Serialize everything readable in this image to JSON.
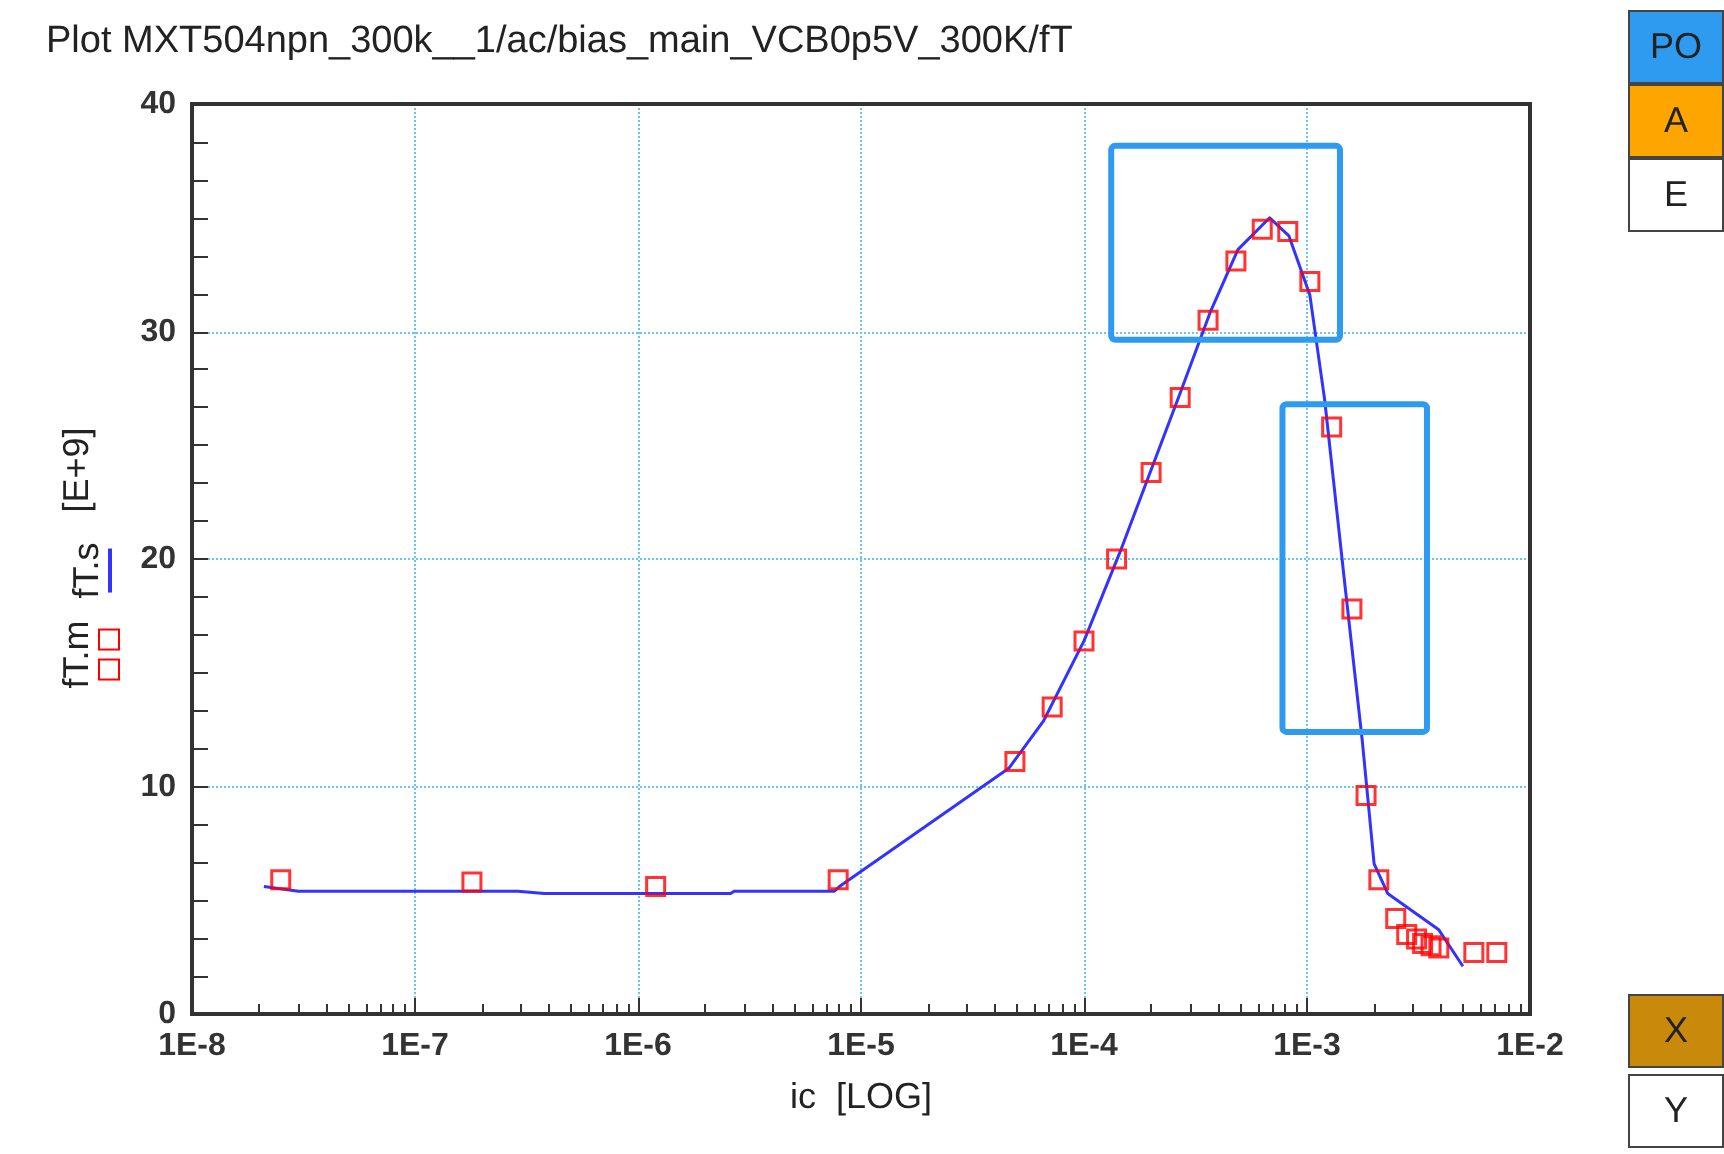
{
  "chart_data": {
    "type": "scatter",
    "title": "Plot MXT504npn_300k__1/ac/bias_main_VCB0p5V_300K/fT",
    "xlabel": "ic  [LOG]",
    "ylabel": "[E+9]",
    "log": "x",
    "grid": true,
    "legend": "left",
    "xlim": [
      1e-08,
      0.01
    ],
    "xticks": [
      {
        "value": 1e-08,
        "label": "1E-8"
      },
      {
        "value": 1e-07,
        "label": "1E-7"
      },
      {
        "value": 1e-06,
        "label": "1E-6"
      },
      {
        "value": 1e-05,
        "label": "1E-5"
      },
      {
        "value": 0.0001,
        "label": "1E-4"
      },
      {
        "value": 0.001,
        "label": "1E-3"
      },
      {
        "value": 0.01,
        "label": "1E-2"
      }
    ],
    "ylim": [
      0,
      40
    ],
    "yticks": [
      0,
      10,
      20,
      30,
      40
    ],
    "annotations": [
      "PO",
      "A",
      "E",
      "X",
      "Y"
    ],
    "series": [
      {
        "name": "fT.m",
        "marker": "square",
        "color": "#ff0000",
        "x": [
          2.5e-08,
          1.8e-07,
          1.2e-06,
          7.9e-06,
          4.9e-05,
          7.2e-05,
          0.0001,
          0.00014,
          0.0002,
          0.00027,
          0.00036,
          0.00048,
          0.00063,
          0.00082,
          0.00103,
          0.00129,
          0.00159,
          0.00184,
          0.0021,
          0.0025,
          0.0028,
          0.0031,
          0.0033,
          0.0036,
          0.0039,
          0.0056,
          0.0071
        ],
        "values": [
          5.9,
          5.8,
          5.6,
          5.9,
          11.1,
          13.5,
          16.4,
          20.0,
          23.8,
          27.1,
          30.5,
          33.1,
          34.5,
          34.4,
          32.2,
          25.8,
          17.8,
          9.6,
          5.9,
          4.2,
          3.5,
          3.3,
          3.1,
          3.0,
          2.9,
          2.7,
          2.7
        ]
      },
      {
        "name": "fT.s",
        "type": "line",
        "marker": "none",
        "color": "#3333ff",
        "x": [
          2.1e-08,
          3e-08,
          2.9e-07,
          3.8e-07,
          2.6e-06,
          2.7e-06,
          7.6e-06,
          8e-06,
          4.6e-05,
          6.6e-05,
          0.0001,
          0.000145,
          0.00027,
          0.00037,
          0.00049,
          0.00068,
          0.00083,
          0.00103,
          0.0012,
          0.00147,
          0.00177,
          0.002,
          0.0023,
          0.0039,
          0.005
        ],
        "values": [
          5.6,
          5.4,
          5.4,
          5.3,
          5.3,
          5.4,
          5.4,
          5.6,
          10.8,
          12.9,
          16.4,
          20.3,
          27.3,
          30.9,
          33.6,
          35.0,
          34.2,
          31.6,
          27.0,
          19.1,
          12.0,
          6.6,
          5.3,
          3.7,
          2.1
        ]
      }
    ]
  }
}
